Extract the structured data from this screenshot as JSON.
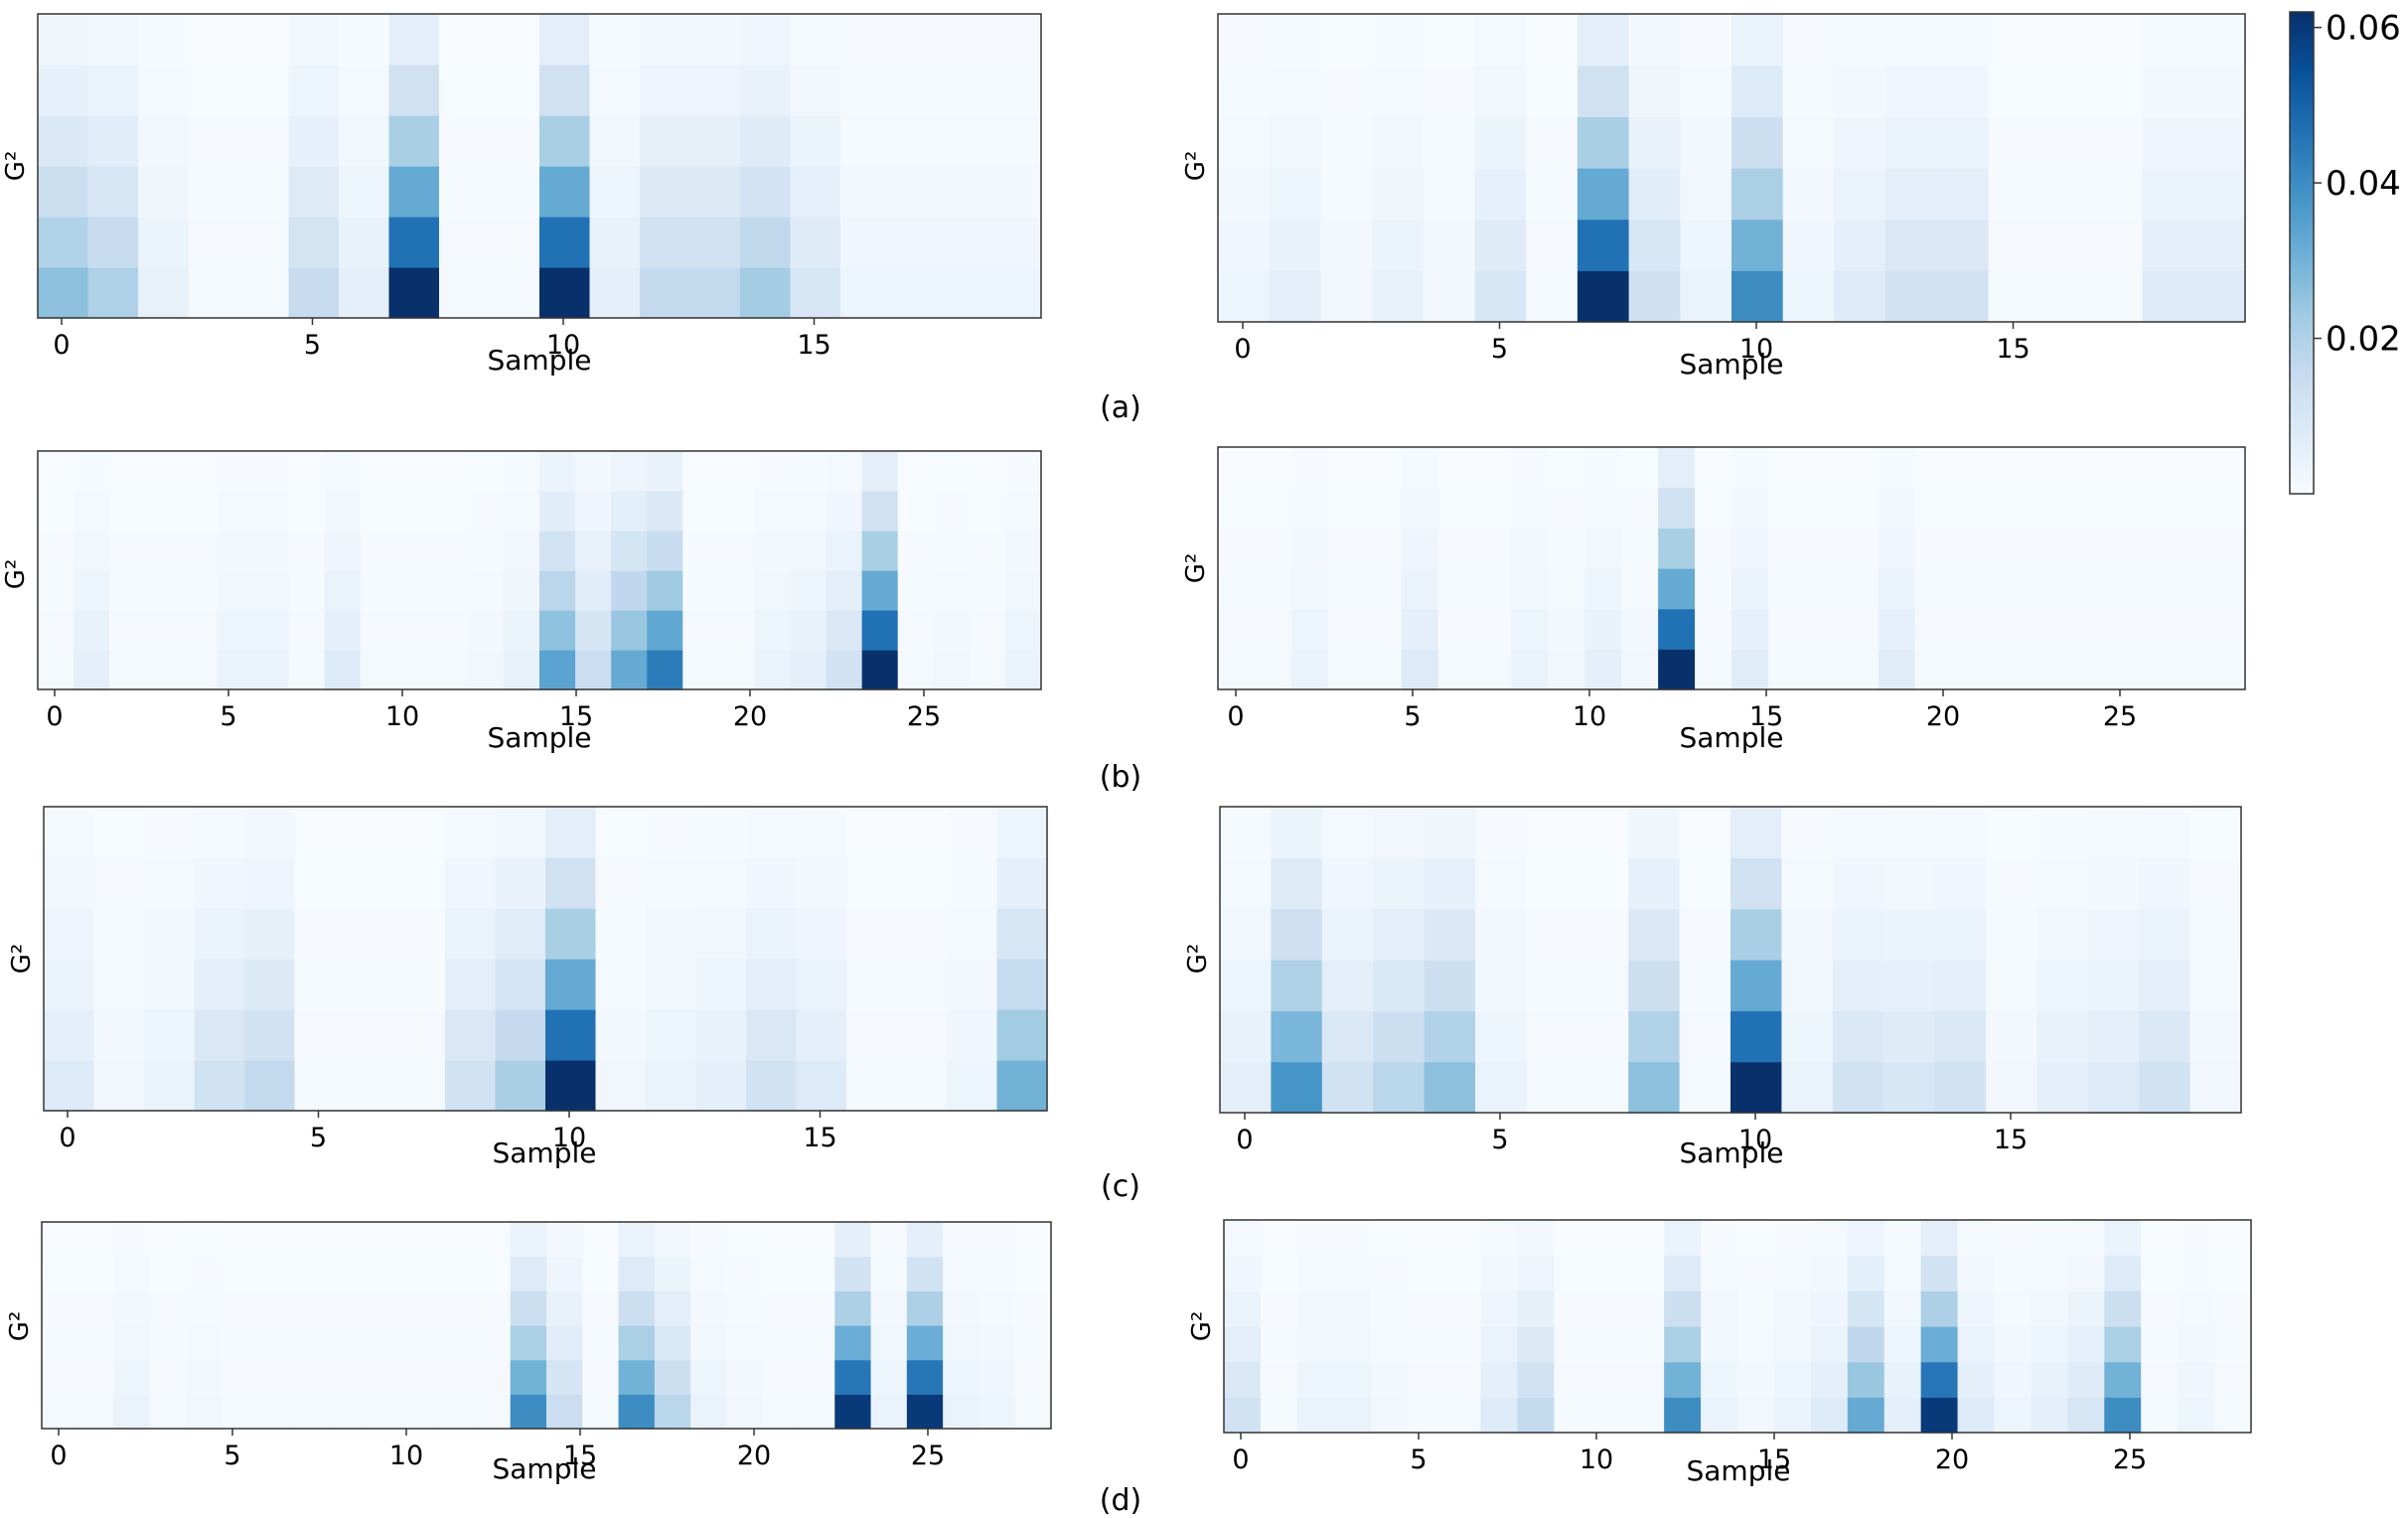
{
  "figure": {
    "colorbar": {
      "ticks": [
        "0.02",
        "0.04",
        "0.06"
      ],
      "tick_values": [
        0.02,
        0.04,
        0.06
      ],
      "min": 0.0,
      "max": 0.062,
      "colors": [
        "#f7fbff",
        "#deebf7",
        "#c6dbef",
        "#9ecae1",
        "#6baed6",
        "#4292c6",
        "#2171b5",
        "#08519c",
        "#08306b"
      ]
    },
    "captions": [
      "(a)",
      "(b)",
      "(c)",
      "(d)"
    ]
  },
  "chart_data": [
    {
      "id": "a-left",
      "type": "heatmap",
      "xlabel": "Sample",
      "ylabel": "G²",
      "xticks": [
        0,
        5,
        10,
        15
      ],
      "n": 20,
      "rows": 6,
      "col_peaks": [
        0.026,
        0.02,
        0.005,
        0.001,
        0.001,
        0.015,
        0.006,
        0.062,
        0.001,
        0.001,
        0.062,
        0.006,
        0.016,
        0.016,
        0.022,
        0.01,
        0.003,
        0.003,
        0.003,
        0.003
      ]
    },
    {
      "id": "a-right",
      "type": "heatmap",
      "xlabel": "Sample",
      "ylabel": "G²",
      "xticks": [
        0,
        5,
        10,
        15
      ],
      "n": 20,
      "rows": 6,
      "col_peaks": [
        0.003,
        0.006,
        0.002,
        0.005,
        0.002,
        0.01,
        0.001,
        0.062,
        0.013,
        0.004,
        0.04,
        0.003,
        0.008,
        0.012,
        0.012,
        0.001,
        0.001,
        0.001,
        0.008,
        0.008
      ]
    },
    {
      "id": "b-left",
      "type": "heatmap",
      "xlabel": "Sample",
      "ylabel": "G²",
      "xticks": [
        0,
        5,
        10,
        15,
        20,
        25
      ],
      "n": 28,
      "rows": 6,
      "col_peaks": [
        0.001,
        0.006,
        0.001,
        0.001,
        0.001,
        0.004,
        0.004,
        0.001,
        0.008,
        0.001,
        0.001,
        0.001,
        0.002,
        0.005,
        0.034,
        0.014,
        0.032,
        0.044,
        0.001,
        0.001,
        0.004,
        0.006,
        0.012,
        0.062,
        0.001,
        0.002,
        0.001,
        0.004
      ]
    },
    {
      "id": "b-right",
      "type": "heatmap",
      "xlabel": "Sample",
      "ylabel": "G²",
      "xticks": [
        0,
        5,
        10,
        15,
        20,
        25
      ],
      "n": 28,
      "rows": 6,
      "col_peaks": [
        0.001,
        0.001,
        0.004,
        0.001,
        0.001,
        0.008,
        0.001,
        0.001,
        0.004,
        0.002,
        0.006,
        0.002,
        0.062,
        0.001,
        0.007,
        0.001,
        0.001,
        0.001,
        0.007,
        0.001,
        0.001,
        0.001,
        0.001,
        0.001,
        0.001,
        0.001,
        0.001,
        0.001
      ]
    },
    {
      "id": "c-left",
      "type": "heatmap",
      "xlabel": "Sample",
      "ylabel": "G²",
      "xticks": [
        0,
        5,
        10,
        15
      ],
      "n": 20,
      "rows": 6,
      "col_peaks": [
        0.008,
        0.002,
        0.004,
        0.012,
        0.016,
        0.001,
        0.001,
        0.001,
        0.012,
        0.021,
        0.062,
        0.002,
        0.004,
        0.006,
        0.012,
        0.008,
        0.001,
        0.001,
        0.003,
        0.03
      ]
    },
    {
      "id": "c-right",
      "type": "heatmap",
      "xlabel": "Sample",
      "ylabel": "G²",
      "xticks": [
        0,
        5,
        10,
        15
      ],
      "n": 20,
      "rows": 6,
      "col_peaks": [
        0.006,
        0.038,
        0.012,
        0.018,
        0.026,
        0.004,
        0.001,
        0.001,
        0.026,
        0.001,
        0.062,
        0.004,
        0.012,
        0.01,
        0.012,
        0.002,
        0.006,
        0.008,
        0.012,
        0.002
      ]
    },
    {
      "id": "d-left",
      "type": "heatmap",
      "xlabel": "Sample",
      "ylabel": "G²",
      "xticks": [
        0,
        5,
        10,
        15,
        20,
        25
      ],
      "n": 28,
      "rows": 6,
      "col_peaks": [
        0.001,
        0.001,
        0.004,
        0.001,
        0.002,
        0.001,
        0.001,
        0.001,
        0.001,
        0.001,
        0.001,
        0.001,
        0.001,
        0.04,
        0.014,
        0.001,
        0.04,
        0.018,
        0.004,
        0.002,
        0.001,
        0.001,
        0.06,
        0.004,
        0.06,
        0.004,
        0.003,
        0.001
      ]
    },
    {
      "id": "d-right",
      "type": "heatmap",
      "xlabel": "Sample",
      "ylabel": "G²",
      "xticks": [
        0,
        5,
        10,
        15,
        20,
        25
      ],
      "n": 28,
      "rows": 6,
      "col_peaks": [
        0.012,
        0.001,
        0.004,
        0.004,
        0.002,
        0.001,
        0.001,
        0.008,
        0.016,
        0.001,
        0.001,
        0.001,
        0.04,
        0.004,
        0.002,
        0.004,
        0.008,
        0.032,
        0.006,
        0.06,
        0.008,
        0.003,
        0.006,
        0.01,
        0.04,
        0.001,
        0.003,
        0.001
      ]
    }
  ]
}
